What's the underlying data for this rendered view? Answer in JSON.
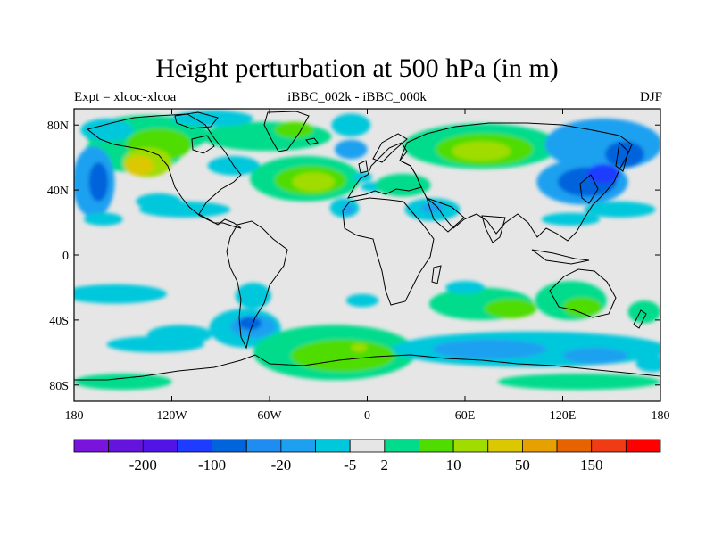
{
  "title": "Height perturbation at 500 hPa (in m)",
  "subtitle_left": "Expt = xlcoc-xlcoa",
  "subtitle_center": "iBBC_002k - iBBC_000k",
  "subtitle_right": "DJF",
  "map": {
    "projection": "cylindrical-equidistant",
    "lon_range": [
      -180,
      180
    ],
    "lat_range": [
      -90,
      90
    ],
    "background_color": "#e6e6e6",
    "lon_ticks": [
      {
        "value": -180,
        "label": "180"
      },
      {
        "value": -120,
        "label": "120W"
      },
      {
        "value": -60,
        "label": "60W"
      },
      {
        "value": 0,
        "label": "0"
      },
      {
        "value": 60,
        "label": "60E"
      },
      {
        "value": 120,
        "label": "120E"
      },
      {
        "value": 180,
        "label": "180"
      }
    ],
    "lat_ticks": [
      {
        "value": 80,
        "label": "80N"
      },
      {
        "value": 40,
        "label": "40N"
      },
      {
        "value": 0,
        "label": "0"
      },
      {
        "value": -40,
        "label": "40S"
      },
      {
        "value": -80,
        "label": "80S"
      }
    ],
    "blobs": [
      {
        "lon": -143,
        "lat": 64,
        "rlon": 30,
        "rlat": 13,
        "color": "#00dc8c"
      },
      {
        "lon": -135,
        "lat": 74,
        "rlon": 38,
        "rlat": 12,
        "color": "#00dc8c"
      },
      {
        "lon": -128,
        "lat": 68,
        "rlon": 20,
        "rlat": 10,
        "color": "#50dc00"
      },
      {
        "lon": -135,
        "lat": 57,
        "rlon": 15,
        "rlat": 9,
        "color": "#a0dc00"
      },
      {
        "lon": -140,
        "lat": 55,
        "rlon": 9,
        "rlat": 6,
        "color": "#dcc800"
      },
      {
        "lon": -168,
        "lat": 45,
        "rlon": 13,
        "rlat": 22,
        "color": "#1ea0f0"
      },
      {
        "lon": -165,
        "lat": 45,
        "rlon": 6,
        "rlat": 12,
        "color": "#0064dc"
      },
      {
        "lon": -160,
        "lat": 77,
        "rlon": 16,
        "rlat": 7,
        "color": "#00c8dc"
      },
      {
        "lon": -128,
        "lat": 33,
        "rlon": 14,
        "rlat": 5,
        "color": "#00c8dc"
      },
      {
        "lon": -112,
        "lat": 28,
        "rlon": 28,
        "rlat": 5,
        "color": "#00c8dc"
      },
      {
        "lon": -162,
        "lat": 22,
        "rlon": 12,
        "rlat": 4,
        "color": "#00c8dc"
      },
      {
        "lon": -62,
        "lat": 73,
        "rlon": 40,
        "rlat": 9,
        "color": "#00dc8c"
      },
      {
        "lon": -45,
        "lat": 77,
        "rlon": 12,
        "rlat": 5,
        "color": "#50dc00"
      },
      {
        "lon": -95,
        "lat": 84,
        "rlon": 25,
        "rlat": 5,
        "color": "#00c8dc"
      },
      {
        "lon": -10,
        "lat": 80,
        "rlon": 12,
        "rlat": 7,
        "color": "#00c8dc"
      },
      {
        "lon": -82,
        "lat": 55,
        "rlon": 16,
        "rlat": 6,
        "color": "#00c8dc"
      },
      {
        "lon": -10,
        "lat": 65,
        "rlon": 10,
        "rlat": 6,
        "color": "#1ea0f0"
      },
      {
        "lon": -38,
        "lat": 47,
        "rlon": 34,
        "rlat": 14,
        "color": "#00dc8c"
      },
      {
        "lon": -35,
        "lat": 46,
        "rlon": 22,
        "rlat": 9,
        "color": "#50dc00"
      },
      {
        "lon": -33,
        "lat": 45,
        "rlon": 13,
        "rlat": 6,
        "color": "#a0dc00"
      },
      {
        "lon": -3,
        "lat": 48,
        "rlon": 6,
        "rlat": 3,
        "color": "#00c8dc"
      },
      {
        "lon": 4,
        "lat": 42,
        "rlon": 8,
        "rlat": 3,
        "color": "#00c8dc"
      },
      {
        "lon": 22,
        "lat": 43,
        "rlon": 17,
        "rlat": 7,
        "color": "#00dc8c"
      },
      {
        "lon": -14,
        "lat": 29,
        "rlon": 9,
        "rlat": 6,
        "color": "#00c8dc"
      },
      {
        "lon": -12,
        "lat": 28,
        "rlon": 4,
        "rlat": 3,
        "color": "#1ea0f0"
      },
      {
        "lon": 40,
        "lat": 28,
        "rlon": 17,
        "rlat": 7,
        "color": "#00c8dc"
      },
      {
        "lon": 40,
        "lat": 29,
        "rlon": 7,
        "rlat": 3,
        "color": "#1ea0f0"
      },
      {
        "lon": 70,
        "lat": 67,
        "rlon": 48,
        "rlat": 14,
        "color": "#00dc8c"
      },
      {
        "lon": 72,
        "lat": 65,
        "rlon": 30,
        "rlat": 10,
        "color": "#50dc00"
      },
      {
        "lon": 70,
        "lat": 64,
        "rlon": 18,
        "rlat": 6,
        "color": "#a0dc00"
      },
      {
        "lon": 145,
        "lat": 68,
        "rlon": 36,
        "rlat": 16,
        "color": "#1ea0f0"
      },
      {
        "lon": 158,
        "lat": 62,
        "rlon": 12,
        "rlat": 8,
        "color": "#0064dc"
      },
      {
        "lon": 132,
        "lat": 45,
        "rlon": 28,
        "rlat": 14,
        "color": "#1ea0f0"
      },
      {
        "lon": 135,
        "lat": 45,
        "rlon": 18,
        "rlat": 9,
        "color": "#0064dc"
      },
      {
        "lon": 145,
        "lat": 50,
        "rlon": 10,
        "rlat": 6,
        "color": "#1e3cff"
      },
      {
        "lon": 155,
        "lat": 28,
        "rlon": 22,
        "rlat": 5,
        "color": "#00c8dc"
      },
      {
        "lon": 125,
        "lat": 22,
        "rlon": 18,
        "rlat": 4,
        "color": "#00c8dc"
      },
      {
        "lon": -155,
        "lat": -24,
        "rlon": 32,
        "rlat": 6,
        "color": "#00c8dc"
      },
      {
        "lon": -70,
        "lat": -25,
        "rlon": 11,
        "rlat": 8,
        "color": "#00c8dc"
      },
      {
        "lon": -75,
        "lat": -45,
        "rlon": 22,
        "rlat": 12,
        "color": "#00c8dc"
      },
      {
        "lon": -70,
        "lat": -44,
        "rlon": 14,
        "rlat": 7,
        "color": "#1ea0f0"
      },
      {
        "lon": -72,
        "lat": -42,
        "rlon": 7,
        "rlat": 4,
        "color": "#0064dc"
      },
      {
        "lon": -115,
        "lat": -49,
        "rlon": 20,
        "rlat": 6,
        "color": "#00c8dc"
      },
      {
        "lon": -130,
        "lat": -55,
        "rlon": 30,
        "rlat": 5,
        "color": "#00c8dc"
      },
      {
        "lon": -3,
        "lat": -28,
        "rlon": 10,
        "rlat": 4,
        "color": "#00c8dc"
      },
      {
        "lon": -20,
        "lat": -60,
        "rlon": 50,
        "rlat": 17,
        "color": "#00dc8c"
      },
      {
        "lon": -15,
        "lat": -62,
        "rlon": 32,
        "rlat": 10,
        "color": "#50dc00"
      },
      {
        "lon": -5,
        "lat": -57,
        "rlon": 5,
        "rlat": 2.5,
        "color": "#a0dc00"
      },
      {
        "lon": 70,
        "lat": -30,
        "rlon": 32,
        "rlat": 10,
        "color": "#00dc8c"
      },
      {
        "lon": 88,
        "lat": -33,
        "rlon": 16,
        "rlat": 6,
        "color": "#50dc00"
      },
      {
        "lon": 125,
        "lat": -28,
        "rlon": 22,
        "rlat": 12,
        "color": "#00dc8c"
      },
      {
        "lon": 132,
        "lat": -32,
        "rlon": 12,
        "rlat": 6,
        "color": "#50dc00"
      },
      {
        "lon": 170,
        "lat": -35,
        "rlon": 10,
        "rlat": 7,
        "color": "#00dc8c"
      },
      {
        "lon": 60,
        "lat": -20,
        "rlon": 12,
        "rlat": 4,
        "color": "#00c8dc"
      },
      {
        "lon": 100,
        "lat": -58,
        "rlon": 85,
        "rlat": 11,
        "color": "#00c8dc"
      },
      {
        "lon": 75,
        "lat": -58,
        "rlon": 35,
        "rlat": 6,
        "color": "#1ea0f0"
      },
      {
        "lon": 140,
        "lat": -62,
        "rlon": 20,
        "rlat": 5,
        "color": "#1ea0f0"
      },
      {
        "lon": 130,
        "lat": -78,
        "rlon": 50,
        "rlat": 5,
        "color": "#00dc8c"
      },
      {
        "lon": -150,
        "lat": -78,
        "rlon": 30,
        "rlat": 5,
        "color": "#00dc8c"
      },
      {
        "lon": 175,
        "lat": -67,
        "rlon": 10,
        "rlat": 5,
        "color": "#00c8dc"
      }
    ]
  },
  "legend": {
    "colors": [
      "#7814dc",
      "#6414dc",
      "#5014e6",
      "#1e3cff",
      "#0064dc",
      "#1e8cf0",
      "#1ea0f0",
      "#00c8dc",
      "#e6e6e6",
      "#00dc8c",
      "#50dc00",
      "#a0dc00",
      "#dcc800",
      "#e6a000",
      "#e66400",
      "#f03c14",
      "#ff0000"
    ],
    "labels": [
      "-200",
      "-100",
      "-20",
      "-5",
      "2",
      "10",
      "50",
      "150"
    ]
  }
}
